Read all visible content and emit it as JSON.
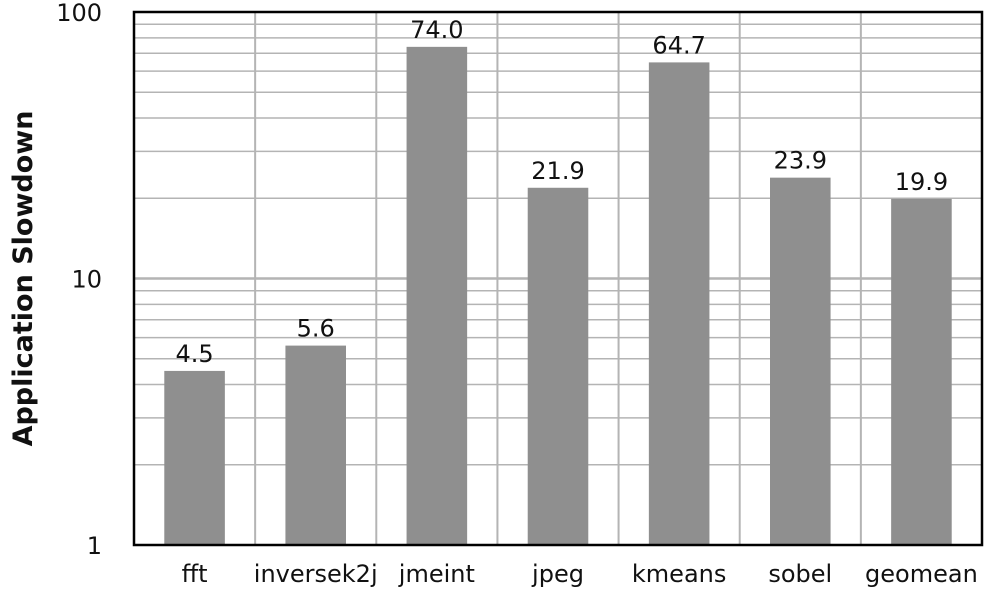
{
  "chart_data": {
    "type": "bar",
    "categories": [
      "fft",
      "inversek2j",
      "jmeint",
      "jpeg",
      "kmeans",
      "sobel",
      "geomean"
    ],
    "values": [
      4.5,
      5.6,
      74.0,
      21.9,
      64.7,
      23.9,
      19.9
    ],
    "data_labels": [
      "4.5",
      "5.6",
      "74.0",
      "21.9",
      "64.7",
      "23.9",
      "19.9"
    ],
    "ylabel": "Application Slowdown",
    "xlabel": "",
    "title": "",
    "yscale": "log",
    "ylim": [
      1,
      100
    ],
    "yticks": [
      1,
      10,
      100
    ],
    "ytick_labels": [
      "1",
      "10",
      "100"
    ],
    "grid": true,
    "colors": {
      "bar": "#8f8f8f",
      "grid": "#b4b4b4",
      "axis": "#000000"
    }
  }
}
